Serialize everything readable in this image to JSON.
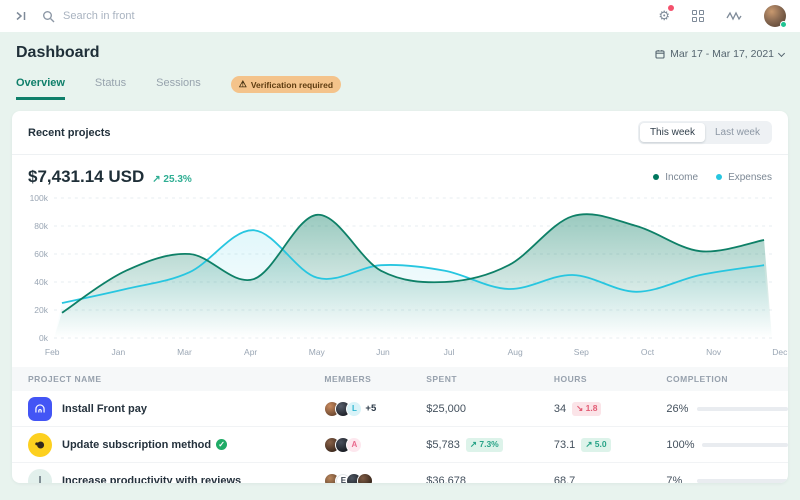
{
  "navbar": {
    "search_placeholder": "Search in front"
  },
  "header": {
    "title": "Dashboard",
    "date_range": "Mar 17 - Mar 17, 2021"
  },
  "tabs": [
    {
      "label": "Overview",
      "active": true
    },
    {
      "label": "Status",
      "active": false
    },
    {
      "label": "Sessions",
      "active": false
    }
  ],
  "verification_badge": {
    "label": "Verification required"
  },
  "card": {
    "title": "Recent projects",
    "range_buttons": [
      {
        "label": "This week",
        "active": true
      },
      {
        "label": "Last week",
        "active": false
      }
    ],
    "stat": {
      "amount": "$7,431.14 USD",
      "change": "25.3%",
      "change_color": "#2fae93"
    },
    "legend": [
      {
        "label": "Income",
        "color": "#00775e"
      },
      {
        "label": "Expenses",
        "color": "#27c6e0"
      }
    ]
  },
  "chart_data": {
    "type": "area",
    "x": [
      "Feb",
      "Jan",
      "Mar",
      "Apr",
      "May",
      "Jun",
      "Jul",
      "Aug",
      "Sep",
      "Oct",
      "Nov",
      "Dec"
    ],
    "series": [
      {
        "name": "Income",
        "color": "#0e8067",
        "fill_opacity": 0.42,
        "values": [
          18,
          48,
          60,
          42,
          88,
          48,
          40,
          52,
          87,
          80,
          62,
          70
        ]
      },
      {
        "name": "Expenses",
        "color": "#27c6e0",
        "fill_opacity": 0.14,
        "values": [
          25,
          35,
          47,
          77,
          43,
          52,
          48,
          35,
          45,
          33,
          45,
          52
        ]
      }
    ],
    "ylabel": "",
    "xlabel": "",
    "ylim": [
      0,
      100
    ],
    "yticks": [
      "100k",
      "80k",
      "60k",
      "40k",
      "20k",
      "0k"
    ],
    "grid": true,
    "legend_position": "top-right"
  },
  "table": {
    "columns": [
      "PROJECT NAME",
      "MEMBERS",
      "SPENT",
      "HOURS",
      "COMPLETION"
    ],
    "rows": [
      {
        "icon": {
          "kind": "front-pay",
          "bg": "#4355f5"
        },
        "name": "Install Front pay",
        "verified": false,
        "members": [
          {
            "type": "photo",
            "palette": "a"
          },
          {
            "type": "photo",
            "palette": "b"
          },
          {
            "type": "letter",
            "label": "L",
            "bg": "#d9f3f8",
            "color": "#2ab4cf"
          }
        ],
        "members_more": "+5",
        "spent": "$25,000",
        "spent_badge": null,
        "hours": "34",
        "hours_badge": {
          "text": "1.8",
          "dir": "down"
        },
        "completion_label": "26%",
        "completion_pct": 26,
        "bar_color": "#0f7f6a"
      },
      {
        "icon": {
          "kind": "mailchimp",
          "bg": "#fdd01f"
        },
        "name": "Update subscription method",
        "verified": true,
        "members": [
          {
            "type": "photo",
            "palette": "c"
          },
          {
            "type": "photo",
            "palette": "d"
          },
          {
            "type": "letter",
            "label": "A",
            "bg": "#fde7ee",
            "color": "#e9688d"
          }
        ],
        "members_more": null,
        "spent": "$5,783",
        "spent_badge": {
          "text": "7.3%",
          "dir": "up"
        },
        "hours": "73.1",
        "hours_badge": {
          "text": "5.0",
          "dir": "up"
        },
        "completion_label": "100%",
        "completion_pct": 100,
        "bar_color": "#14c79e"
      },
      {
        "icon": {
          "kind": "letter",
          "label": "I",
          "bg": "#e2f0ec",
          "color": "#5d6b75"
        },
        "name": "Increase productivity with reviews",
        "verified": false,
        "members": [
          {
            "type": "photo",
            "palette": "e"
          },
          {
            "type": "letter",
            "label": "E",
            "bg": "#ffffff",
            "color": "#39424e"
          },
          {
            "type": "photo",
            "palette": "f"
          },
          {
            "type": "photo",
            "palette": "g"
          }
        ],
        "members_more": null,
        "spent": "$36,678",
        "spent_badge": null,
        "hours": "68.7",
        "hours_badge": null,
        "completion_label": "7%",
        "completion_pct": 7,
        "bar_color": "#0f7f6a"
      }
    ]
  }
}
